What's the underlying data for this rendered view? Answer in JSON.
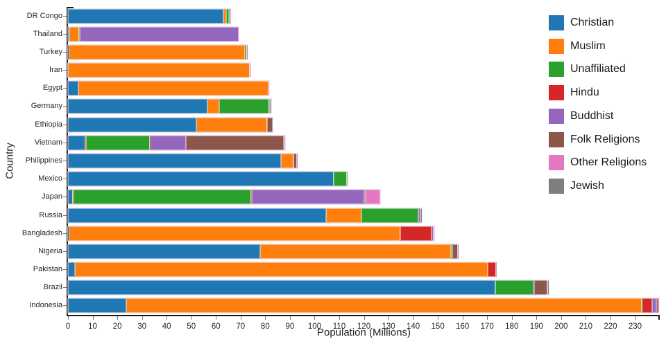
{
  "chart_data": {
    "type": "bar",
    "orientation": "horizontal",
    "stacked": true,
    "title": "",
    "xlabel": "Population (Millions)",
    "ylabel": "Country",
    "xlim": [
      0,
      240
    ],
    "xticks": [
      0,
      10,
      20,
      30,
      40,
      50,
      60,
      70,
      80,
      90,
      100,
      110,
      120,
      130,
      140,
      150,
      160,
      170,
      180,
      190,
      200,
      210,
      220,
      230
    ],
    "grid": false,
    "legend_position": "top-right",
    "categories": [
      "DR Congo",
      "Thailand",
      "Turkey",
      "Iran",
      "Egypt",
      "Germany",
      "Ethiopia",
      "Vietnam",
      "Philippines",
      "Mexico",
      "Japan",
      "Russia",
      "Bangladesh",
      "Nigeria",
      "Pakistan",
      "Brazil",
      "Indonesia"
    ],
    "series": [
      {
        "name": "Christian",
        "color": "#1f77b4",
        "values": [
          63.15,
          0.61,
          0.32,
          0.12,
          4.29,
          56.54,
          52.07,
          7.13,
          86.37,
          107.78,
          2.04,
          104.75,
          0.3,
          78.05,
          2.75,
          173.3,
          23.66
        ]
      },
      {
        "name": "Muslim",
        "color": "#ff7f0e",
        "values": [
          0.97,
          3.95,
          71.33,
          73.57,
          76.99,
          4.76,
          28.68,
          0.16,
          5.05,
          0.11,
          0.23,
          14.29,
          134.43,
          77.3,
          167.41,
          0.04,
          209.12
        ]
      },
      {
        "name": "Unaffiliated",
        "color": "#2ca02c",
        "values": [
          1.18,
          0.2,
          0.89,
          0.04,
          0.16,
          20.35,
          0.04,
          26.04,
          0.07,
          5.26,
          72.12,
          23.18,
          0.15,
          0.63,
          0.02,
          15.41,
          0.1
        ]
      },
      {
        "name": "Hindu",
        "color": "#d62728",
        "values": [
          0,
          0.07,
          0,
          0,
          0,
          0.08,
          0,
          0.05,
          0,
          0,
          0.03,
          0,
          12.64,
          0,
          3.33,
          0,
          4.05
        ]
      },
      {
        "name": "Buddhist",
        "color": "#9467bd",
        "values": [
          0,
          64.42,
          0.03,
          0,
          0,
          0.25,
          0.01,
          14.38,
          0.04,
          0.01,
          45.76,
          0.61,
          0.74,
          0,
          0,
          0.25,
          1.72
        ]
      },
      {
        "name": "Folk Religions",
        "color": "#8c564b",
        "values": [
          0.44,
          0.01,
          0.02,
          0,
          0.01,
          0.08,
          2.26,
          39.75,
          1.41,
          0.11,
          0.51,
          0.25,
          0.15,
          2.22,
          0.03,
          5.54,
          0.72
        ]
      },
      {
        "name": "Other Religions",
        "color": "#e377c2",
        "values": [
          0.12,
          0.01,
          0.22,
          0.26,
          0.01,
          0.08,
          0.01,
          0.45,
          0.28,
          0.09,
          5.94,
          0.02,
          0.15,
          0.16,
          0.02,
          0.3,
          0.48
        ]
      },
      {
        "name": "Jewish",
        "color": "#7f7f7f",
        "values": [
          0,
          0,
          0.02,
          0.01,
          0,
          0.23,
          0,
          0,
          0,
          0.04,
          0,
          0.29,
          0,
          0,
          0,
          0.11,
          0
        ]
      }
    ]
  }
}
